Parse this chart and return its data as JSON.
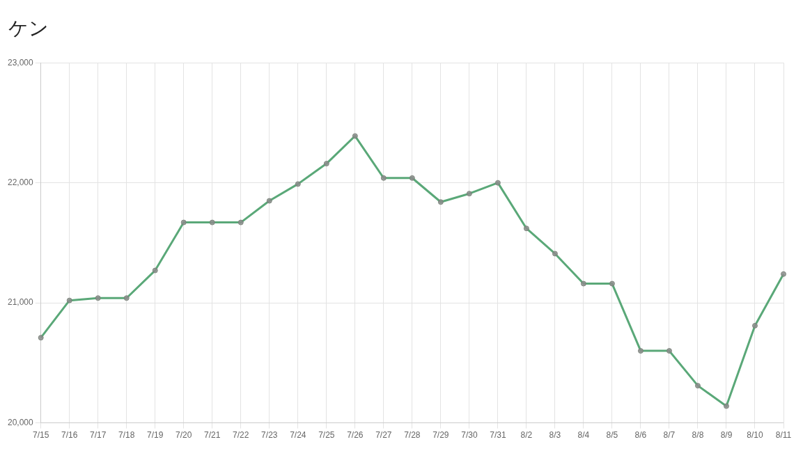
{
  "chart_data": {
    "type": "line",
    "title": "ケン",
    "categories": [
      "7/15",
      "7/16",
      "7/17",
      "7/18",
      "7/19",
      "7/20",
      "7/21",
      "7/22",
      "7/23",
      "7/24",
      "7/25",
      "7/26",
      "7/27",
      "7/28",
      "7/29",
      "7/30",
      "7/31",
      "8/2",
      "8/3",
      "8/4",
      "8/5",
      "8/6",
      "8/7",
      "8/8",
      "8/9",
      "8/10",
      "8/11"
    ],
    "series": [
      {
        "color": "#5aa878",
        "values": [
          20710,
          21020,
          21040,
          21040,
          21270,
          21670,
          21670,
          21670,
          21850,
          21990,
          22160,
          22390,
          22040,
          22040,
          21840,
          21910,
          22000,
          21620,
          21410,
          21160,
          21160,
          20600,
          20600,
          20310,
          20140,
          20810,
          21240
        ]
      }
    ],
    "ylim": [
      20000,
      23000
    ],
    "yticks": [
      {
        "value": 20000,
        "label": "20,000"
      },
      {
        "value": 21000,
        "label": "21,000"
      },
      {
        "value": 22000,
        "label": "22,000"
      },
      {
        "value": 23000,
        "label": "23,000"
      }
    ],
    "grid": true,
    "marker": "circle",
    "legend": false
  }
}
